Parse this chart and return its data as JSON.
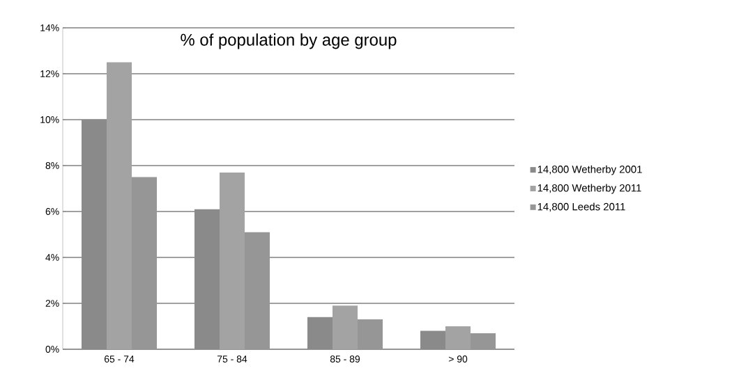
{
  "chart_data": {
    "type": "bar",
    "title": "% of population by age group",
    "categories": [
      "65 - 74",
      "75 - 84",
      "85 - 89",
      "> 90"
    ],
    "series": [
      {
        "name": "14,800  Wetherby 2001",
        "color": "#8a8a8a",
        "values": [
          10.0,
          6.1,
          1.4,
          0.8
        ]
      },
      {
        "name": "14,800  Wetherby 2011",
        "color": "#a3a3a3",
        "values": [
          12.5,
          7.7,
          1.9,
          1.0
        ]
      },
      {
        "name": "14,800  Leeds 2011",
        "color": "#969696",
        "values": [
          7.5,
          5.1,
          1.3,
          0.7
        ]
      }
    ],
    "ylim": [
      0,
      14
    ],
    "yticks": [
      {
        "value": 0,
        "label": "0%"
      },
      {
        "value": 2,
        "label": "2%"
      },
      {
        "value": 4,
        "label": "4%"
      },
      {
        "value": 6,
        "label": "6%"
      },
      {
        "value": 8,
        "label": "8%"
      },
      {
        "value": 10,
        "label": "10%"
      },
      {
        "value": 12,
        "label": "12%"
      },
      {
        "value": 14,
        "label": "14%"
      }
    ],
    "grid": "y",
    "legend": "right"
  }
}
